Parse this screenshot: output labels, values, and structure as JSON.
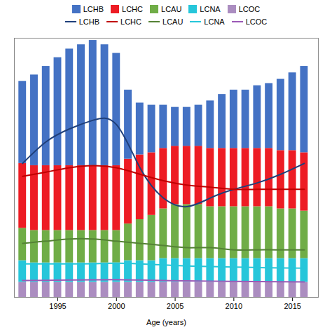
{
  "chart_data": {
    "type": "bar",
    "xlabel": "Age (years)",
    "x": [
      1992,
      1993,
      1994,
      1995,
      1996,
      1997,
      1998,
      1999,
      2000,
      2001,
      2002,
      2003,
      2004,
      2005,
      2006,
      2007,
      2008,
      2009,
      2010,
      2011,
      2012,
      2013,
      2014,
      2015,
      2016
    ],
    "stacked": true,
    "legend": "top",
    "tick_labels": "x",
    "xlim": [
      1991.3,
      2017.2
    ],
    "xticks": [
      1995,
      2000,
      2005,
      2010,
      2015
    ],
    "ylim": [
      0,
      1.2
    ],
    "series": [
      {
        "name": "LCHB",
        "type": "bar",
        "color": "#4472C4",
        "values": [
          0.38,
          0.42,
          0.46,
          0.5,
          0.54,
          0.56,
          0.58,
          0.56,
          0.52,
          0.32,
          0.24,
          0.22,
          0.2,
          0.18,
          0.18,
          0.19,
          0.22,
          0.25,
          0.27,
          0.27,
          0.29,
          0.3,
          0.33,
          0.36,
          0.4
        ]
      },
      {
        "name": "LCHC",
        "type": "bar",
        "color": "#ED1C24",
        "values": [
          0.3,
          0.3,
          0.3,
          0.3,
          0.3,
          0.3,
          0.3,
          0.3,
          0.3,
          0.3,
          0.3,
          0.29,
          0.28,
          0.27,
          0.27,
          0.27,
          0.27,
          0.27,
          0.27,
          0.27,
          0.27,
          0.27,
          0.27,
          0.27,
          0.27
        ]
      },
      {
        "name": "LCAU",
        "type": "bar",
        "color": "#70AD47",
        "values": [
          0.15,
          0.15,
          0.15,
          0.15,
          0.15,
          0.15,
          0.15,
          0.15,
          0.15,
          0.17,
          0.19,
          0.21,
          0.23,
          0.25,
          0.25,
          0.25,
          0.24,
          0.24,
          0.24,
          0.24,
          0.24,
          0.24,
          0.23,
          0.23,
          0.22
        ]
      },
      {
        "name": "LCNA",
        "type": "bar",
        "color": "#26C6DA",
        "values": [
          0.1,
          0.09,
          0.09,
          0.09,
          0.09,
          0.09,
          0.09,
          0.09,
          0.09,
          0.1,
          0.1,
          0.1,
          0.11,
          0.11,
          0.11,
          0.11,
          0.11,
          0.11,
          0.11,
          0.11,
          0.11,
          0.11,
          0.11,
          0.11,
          0.11
        ]
      },
      {
        "name": "LCOC",
        "type": "bar",
        "color": "#AB8DC0",
        "values": [
          0.07,
          0.07,
          0.07,
          0.07,
          0.07,
          0.07,
          0.07,
          0.07,
          0.07,
          0.07,
          0.07,
          0.07,
          0.07,
          0.07,
          0.07,
          0.07,
          0.07,
          0.07,
          0.07,
          0.07,
          0.07,
          0.07,
          0.07,
          0.07,
          0.07
        ]
      },
      {
        "name": "LCHB",
        "type": "line",
        "color": "#1F3F7A",
        "x": [
          1992,
          1994,
          1996,
          1998,
          2000,
          2002,
          2004,
          2006,
          2008,
          2010,
          2012,
          2014,
          2016
        ],
        "values": [
          0.62,
          0.72,
          0.78,
          0.82,
          0.8,
          0.6,
          0.46,
          0.42,
          0.46,
          0.5,
          0.53,
          0.57,
          0.62
        ]
      },
      {
        "name": "LCHC",
        "type": "line",
        "color": "#C00000",
        "x": [
          1992,
          1994,
          1996,
          1998,
          2000,
          2002,
          2004,
          2006,
          2008,
          2010,
          2012,
          2014,
          2016
        ],
        "values": [
          0.56,
          0.58,
          0.6,
          0.61,
          0.6,
          0.57,
          0.54,
          0.52,
          0.51,
          0.5,
          0.5,
          0.5,
          0.5
        ]
      },
      {
        "name": "LCAU",
        "type": "line",
        "color": "#548235",
        "x": [
          1992,
          1994,
          1996,
          1998,
          2000,
          2002,
          2004,
          2006,
          2008,
          2010,
          2012,
          2014,
          2016
        ],
        "values": [
          0.25,
          0.26,
          0.27,
          0.27,
          0.26,
          0.25,
          0.24,
          0.23,
          0.23,
          0.22,
          0.22,
          0.22,
          0.22
        ]
      },
      {
        "name": "LCNA",
        "type": "line",
        "color": "#26C6DA",
        "x": [
          1992,
          1994,
          1996,
          1998,
          2000,
          2002,
          2004,
          2006,
          2008,
          2010,
          2012,
          2014,
          2016
        ],
        "values": [
          0.155,
          0.155,
          0.155,
          0.156,
          0.158,
          0.155,
          0.15,
          0.145,
          0.143,
          0.14,
          0.138,
          0.136,
          0.135
        ]
      },
      {
        "name": "LCOC",
        "type": "line",
        "color": "#9B59B6",
        "x": [
          1992,
          1994,
          1996,
          1998,
          2000,
          2002,
          2004,
          2006,
          2008,
          2010,
          2012,
          2014,
          2016
        ],
        "values": [
          0.078,
          0.079,
          0.08,
          0.081,
          0.082,
          0.08,
          0.078,
          0.076,
          0.075,
          0.074,
          0.073,
          0.072,
          0.071
        ]
      }
    ]
  }
}
